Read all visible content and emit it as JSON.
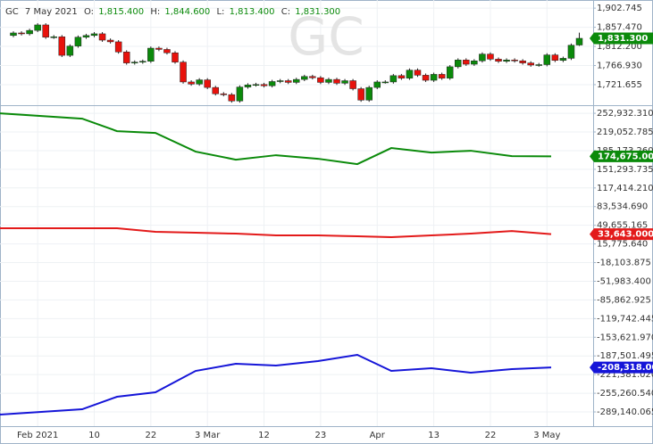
{
  "header": {
    "symbol": "GC",
    "date": "7 May 2021",
    "fields": [
      {
        "label": "O:",
        "value": "1,815.400"
      },
      {
        "label": "H:",
        "value": "1,844.600"
      },
      {
        "label": "L:",
        "value": "1,813.400"
      },
      {
        "label": "C:",
        "value": "1,831.300"
      }
    ]
  },
  "chart_data": [
    {
      "type": "candlestick",
      "watermark": "GC",
      "grid": true,
      "up_color": "#0b8a0b",
      "down_color": "#e8120c",
      "categories": [
        null,
        null,
        null,
        "Feb 2021",
        null,
        null,
        null,
        null,
        null,
        null,
        "10",
        null,
        null,
        null,
        null,
        null,
        null,
        "22",
        null,
        null,
        null,
        null,
        null,
        null,
        "3 Mar",
        null,
        null,
        null,
        null,
        null,
        null,
        "12",
        null,
        null,
        null,
        null,
        null,
        null,
        "23",
        null,
        null,
        null,
        null,
        null,
        null,
        "Apr",
        null,
        null,
        null,
        null,
        null,
        null,
        "13",
        null,
        null,
        null,
        null,
        null,
        null,
        "22",
        null,
        null,
        null,
        null,
        null,
        null,
        "3 May",
        null,
        null,
        null,
        null
      ],
      "open": [
        1838,
        1844,
        1842,
        1850,
        1863,
        1834,
        1835,
        1791,
        1813,
        1834,
        1838,
        1842,
        1827,
        1823,
        1799,
        1773,
        1775,
        1777,
        1808,
        1805,
        1797,
        1775,
        1728,
        1723,
        1733,
        1715,
        1700,
        1698,
        1683,
        1716,
        1721,
        1722,
        1719,
        1729,
        1731,
        1727,
        1734,
        1741,
        1738,
        1727,
        1734,
        1725,
        1731,
        1712,
        1685,
        1715,
        1728,
        1728,
        1743,
        1737,
        1756,
        1744,
        1732,
        1746,
        1737,
        1764,
        1780,
        1770,
        1778,
        1794,
        1782,
        1777,
        1780,
        1778,
        1773,
        1768,
        1769,
        1792,
        1779,
        1784,
        1815.4
      ],
      "high": [
        1848,
        1848,
        1854,
        1867,
        1867,
        1839,
        1839,
        1817,
        1838,
        1842,
        1846,
        1846,
        1831,
        1827,
        1803,
        1779,
        1781,
        1812,
        1812,
        1809,
        1801,
        1779,
        1732,
        1737,
        1737,
        1719,
        1704,
        1702,
        1720,
        1725,
        1726,
        1726,
        1733,
        1735,
        1735,
        1738,
        1745,
        1745,
        1742,
        1738,
        1738,
        1735,
        1735,
        1716,
        1719,
        1732,
        1732,
        1747,
        1747,
        1760,
        1760,
        1748,
        1750,
        1750,
        1768,
        1784,
        1784,
        1782,
        1798,
        1798,
        1786,
        1784,
        1784,
        1782,
        1777,
        1773,
        1796,
        1796,
        1788,
        1819,
        1844.6
      ],
      "low": [
        1834,
        1838,
        1838,
        1846,
        1830,
        1830,
        1787,
        1787,
        1809,
        1830,
        1834,
        1823,
        1819,
        1795,
        1769,
        1769,
        1771,
        1773,
        1801,
        1793,
        1771,
        1724,
        1719,
        1719,
        1711,
        1696,
        1694,
        1679,
        1679,
        1712,
        1717,
        1715,
        1715,
        1725,
        1723,
        1723,
        1730,
        1734,
        1723,
        1723,
        1721,
        1721,
        1708,
        1681,
        1681,
        1711,
        1724,
        1724,
        1733,
        1733,
        1740,
        1728,
        1728,
        1733,
        1733,
        1760,
        1766,
        1766,
        1774,
        1778,
        1773,
        1773,
        1774,
        1769,
        1764,
        1764,
        1765,
        1775,
        1775,
        1780,
        1813.4
      ],
      "close": [
        1844,
        1842,
        1850,
        1863,
        1834,
        1835,
        1791,
        1813,
        1834,
        1838,
        1842,
        1827,
        1823,
        1799,
        1773,
        1775,
        1777,
        1808,
        1805,
        1797,
        1775,
        1728,
        1723,
        1733,
        1715,
        1700,
        1698,
        1683,
        1716,
        1721,
        1722,
        1719,
        1729,
        1731,
        1727,
        1734,
        1741,
        1738,
        1727,
        1734,
        1725,
        1731,
        1712,
        1685,
        1715,
        1728,
        1728,
        1743,
        1737,
        1756,
        1744,
        1732,
        1746,
        1737,
        1764,
        1780,
        1770,
        1778,
        1794,
        1782,
        1777,
        1780,
        1778,
        1773,
        1768,
        1769,
        1792,
        1779,
        1784,
        1815,
        1831.3
      ],
      "close_labels": [
        null,
        null,
        null,
        null,
        null,
        null,
        null,
        null,
        null,
        null,
        null,
        null,
        null,
        null,
        null,
        null,
        null,
        null,
        null,
        null,
        null,
        null,
        null,
        null,
        null,
        null,
        null,
        null,
        null,
        null,
        null,
        null,
        null,
        null,
        null,
        null,
        null,
        null,
        null,
        null,
        null,
        null,
        null,
        null,
        null,
        null,
        null,
        null,
        null,
        null,
        null,
        null,
        null,
        null,
        null,
        null,
        null,
        null,
        null,
        null,
        null,
        null,
        null,
        null,
        null,
        null,
        null,
        null,
        null,
        null,
        "1,831.300"
      ],
      "ylim": [
        1673,
        1922
      ],
      "yticks": [
        {
          "value": 1902.745,
          "label": "1,902.745"
        },
        {
          "value": 1857.47,
          "label": "1,857.470"
        },
        {
          "value": 1812.2,
          "label": "1,812.200"
        },
        {
          "value": 1766.93,
          "label": "1,766.930"
        },
        {
          "value": 1721.655,
          "label": "1,721.655"
        }
      ]
    },
    {
      "type": "line",
      "grid": true,
      "categories": [
        null,
        null,
        null,
        null,
        null,
        null,
        null,
        null,
        null,
        null,
        null,
        null,
        null,
        null
      ],
      "series": [
        {
          "color": "#0a8a0a",
          "values": [
            252932,
            243223,
            220570,
            217333,
            183352,
            168790,
            176880,
            170408,
            160700,
            189826,
            181734,
            184970,
            175262,
            174675
          ],
          "value_labels": [
            null,
            null,
            null,
            null,
            null,
            null,
            null,
            null,
            null,
            null,
            null,
            null,
            null,
            "174,675.000"
          ]
        },
        {
          "color": "#e31a1a",
          "values": [
            44200,
            44200,
            44200,
            37730,
            36110,
            34490,
            31260,
            31260,
            29640,
            28020,
            31260,
            34490,
            39290,
            33643
          ],
          "value_labels": [
            null,
            null,
            null,
            null,
            null,
            null,
            null,
            null,
            null,
            null,
            null,
            null,
            null,
            "33,643.000"
          ]
        },
        {
          "color": "#1515d8",
          "values": [
            -294000,
            -284270,
            -261620,
            -253530,
            -214700,
            -201750,
            -204990,
            -196900,
            -185570,
            -214700,
            -209850,
            -217940,
            -211470,
            -208318
          ],
          "value_labels": [
            null,
            null,
            null,
            null,
            null,
            null,
            null,
            null,
            null,
            null,
            null,
            null,
            null,
            "-208,318.000"
          ]
        }
      ],
      "ylim": [
        -315000,
        266000
      ],
      "yticks": [
        {
          "value": 252932.31,
          "label": "252,932.310"
        },
        {
          "value": 219052.785,
          "label": "219,052.785"
        },
        {
          "value": 185173.26,
          "label": "185,173.260"
        },
        {
          "value": 151293.735,
          "label": "151,293.735"
        },
        {
          "value": 117414.21,
          "label": "117,414.210"
        },
        {
          "value": 83534.69,
          "label": "83,534.690"
        },
        {
          "value": 49655.165,
          "label": "49,655.165"
        },
        {
          "value": 15775.64,
          "label": "15,775.640"
        },
        {
          "value": -18103.875,
          "label": "-18,103.875"
        },
        {
          "value": -51983.4,
          "label": "-51,983.400"
        },
        {
          "value": -85862.925,
          "label": "-85,862.925"
        },
        {
          "value": -119742.445,
          "label": "-119,742.445"
        },
        {
          "value": -153621.97,
          "label": "-153,621.970"
        },
        {
          "value": -187501.495,
          "label": "-187,501.495"
        },
        {
          "value": -221381.02,
          "label": "-221,381.020"
        },
        {
          "value": -255260.54,
          "label": "-255,260.540"
        },
        {
          "value": -289140.065,
          "label": "-289,140.065"
        }
      ]
    }
  ]
}
